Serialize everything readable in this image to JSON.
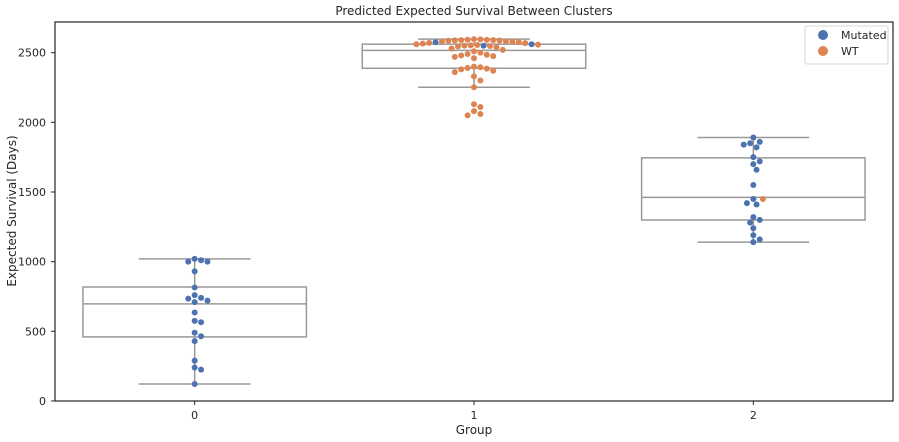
{
  "chart_data": {
    "type": "box+swarm",
    "title": "Predicted Expected Survival Between Clusters",
    "xlabel": "Group",
    "ylabel": "Expected Survival (Days)",
    "categories": [
      "0",
      "1",
      "2"
    ],
    "ylim": [
      0,
      2720
    ],
    "yticks": [
      0,
      500,
      1000,
      1500,
      2000,
      2500
    ],
    "grid": false,
    "legend": {
      "placement": "top-right",
      "entries": [
        "Mutated",
        "WT"
      ]
    },
    "colors": {
      "Mutated": "#4c72b0",
      "WT": "#dd8452",
      "box": "#999999",
      "frame": "#262626"
    },
    "boxes": [
      {
        "group": "0",
        "whislo": 122,
        "q1": 460,
        "median": 697,
        "q3": 818,
        "whishi": 1020
      },
      {
        "group": "1",
        "whislo": 2252,
        "q1": 2388,
        "median": 2516,
        "q3": 2561,
        "whishi": 2597
      },
      {
        "group": "2",
        "whislo": 1140,
        "q1": 1299,
        "median": 1461,
        "q3": 1745,
        "whishi": 1891
      }
    ],
    "points": [
      {
        "group": "0",
        "status": "Mutated",
        "values": [
          1020,
          1010,
          1000,
          1000,
          930,
          815,
          760,
          740,
          735,
          720,
          710,
          635,
          575,
          565,
          490,
          465,
          430,
          290,
          240,
          225,
          122
        ]
      },
      {
        "group": "1",
        "status": "Mutated",
        "values": [
          2575,
          2560,
          2550
        ]
      },
      {
        "group": "1",
        "status": "WT",
        "values": [
          2597,
          2595,
          2593,
          2592,
          2590,
          2590,
          2588,
          2587,
          2585,
          2582,
          2580,
          2578,
          2575,
          2570,
          2568,
          2565,
          2560,
          2558,
          2555,
          2552,
          2550,
          2548,
          2545,
          2540,
          2530,
          2520,
          2510,
          2500,
          2490,
          2485,
          2480,
          2475,
          2470,
          2460,
          2400,
          2395,
          2390,
          2385,
          2380,
          2370,
          2360,
          2330,
          2300,
          2252,
          2130,
          2110,
          2080,
          2060,
          2050
        ]
      },
      {
        "group": "2",
        "status": "Mutated",
        "values": [
          1891,
          1860,
          1850,
          1840,
          1820,
          1750,
          1720,
          1700,
          1660,
          1550,
          1450,
          1420,
          1410,
          1320,
          1300,
          1280,
          1240,
          1190,
          1160,
          1140
        ]
      },
      {
        "group": "2",
        "status": "WT",
        "values": [
          1450
        ]
      }
    ]
  }
}
